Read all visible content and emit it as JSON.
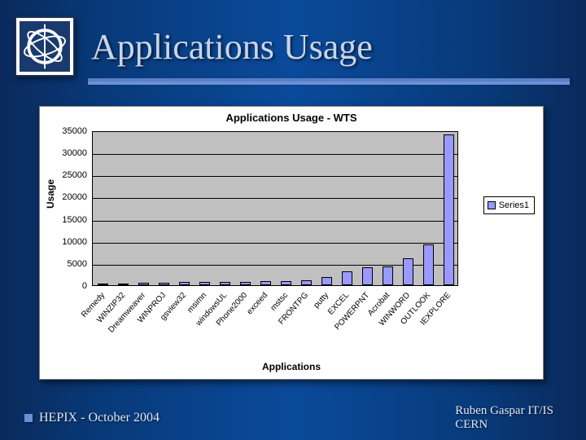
{
  "slide": {
    "title": "Applications Usage",
    "footer_left": "HEPIX - October 2004",
    "footer_right_line1": "Ruben Gaspar IT/IS",
    "footer_right_line2": "CERN"
  },
  "chart": {
    "type": "bar",
    "title": "Applications Usage - WTS",
    "title_fontsize": 13,
    "xlabel": "Applications",
    "ylabel": "Usage",
    "label_fontsize": 12,
    "background_color": "#ffffff",
    "plot_background": "#c0c0c0",
    "grid_color": "#000000",
    "bar_color": "#9999ff",
    "bar_border": "#000000",
    "bar_width": 0.55,
    "tick_fontsize": 11,
    "xtick_fontsize": 10,
    "xtick_rotation_deg": -48,
    "ylim": [
      0,
      35000
    ],
    "ytick_step": 5000,
    "yticks": [
      0,
      5000,
      10000,
      15000,
      20000,
      25000,
      30000,
      35000
    ],
    "categories": [
      "Remedy",
      "WINZIP32",
      "Dreamweaver",
      "WINPROJ",
      "gsview32",
      "msimn",
      "windowsUL",
      "Phone2000",
      "exceed",
      "mstsc",
      "FRONTPG",
      "putty",
      "EXCEL",
      "POWERPNT",
      "Acrobat",
      "WINWORD",
      "OUTLOOK",
      "IEXPLORE"
    ],
    "values": [
      400,
      450,
      500,
      550,
      650,
      700,
      750,
      800,
      850,
      950,
      1100,
      1800,
      3200,
      4000,
      4200,
      6000,
      9200,
      34000
    ],
    "legend": {
      "label": "Series1",
      "color": "#9999ff"
    }
  }
}
